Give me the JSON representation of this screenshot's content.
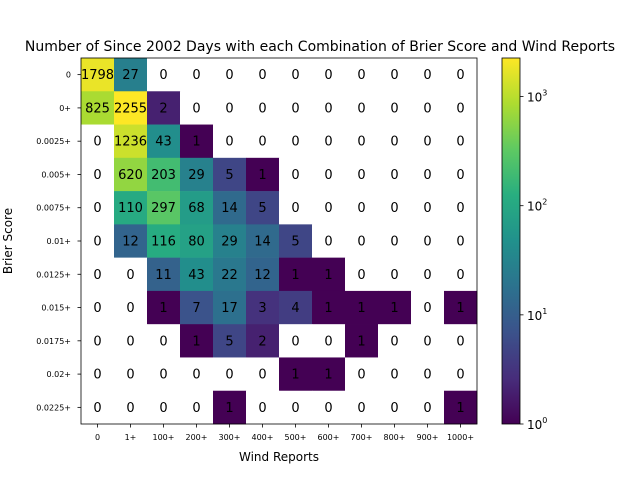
{
  "chart_data": {
    "type": "heatmap",
    "title": "Number of Since 2002 Days with each Combination of Brier Score and Wind Reports",
    "xlabel": "Wind Reports",
    "ylabel": "Brier Score",
    "x_categories": [
      "0",
      "1+",
      "100+",
      "200+",
      "300+",
      "400+",
      "500+",
      "600+",
      "700+",
      "800+",
      "900+",
      "1000+"
    ],
    "y_categories": [
      "0",
      "0+",
      "0.0025+",
      "0.005+",
      "0.0075+",
      "0.01+",
      "0.0125+",
      "0.015+",
      "0.0175+",
      "0.02+",
      "0.0225+"
    ],
    "values": [
      [
        1798,
        27,
        0,
        0,
        0,
        0,
        0,
        0,
        0,
        0,
        0,
        0
      ],
      [
        825,
        2255,
        2,
        0,
        0,
        0,
        0,
        0,
        0,
        0,
        0,
        0
      ],
      [
        0,
        1236,
        43,
        1,
        0,
        0,
        0,
        0,
        0,
        0,
        0,
        0
      ],
      [
        0,
        620,
        203,
        29,
        5,
        1,
        0,
        0,
        0,
        0,
        0,
        0
      ],
      [
        0,
        110,
        297,
        68,
        14,
        5,
        0,
        0,
        0,
        0,
        0,
        0
      ],
      [
        0,
        12,
        116,
        80,
        29,
        14,
        5,
        0,
        0,
        0,
        0,
        0
      ],
      [
        0,
        0,
        11,
        43,
        22,
        12,
        1,
        1,
        0,
        0,
        0,
        0
      ],
      [
        0,
        0,
        1,
        7,
        17,
        3,
        4,
        1,
        1,
        1,
        0,
        1
      ],
      [
        0,
        0,
        0,
        1,
        5,
        2,
        0,
        0,
        1,
        0,
        0,
        0
      ],
      [
        0,
        0,
        0,
        0,
        0,
        0,
        1,
        1,
        0,
        0,
        0,
        0
      ],
      [
        0,
        0,
        0,
        0,
        1,
        0,
        0,
        0,
        0,
        0,
        0,
        1
      ]
    ],
    "colormap": "viridis",
    "color_scale": "log",
    "color_range": [
      1,
      2255
    ],
    "colorbar_ticks": [
      {
        "base": "10",
        "exp": "0",
        "value": 1
      },
      {
        "base": "10",
        "exp": "1",
        "value": 10
      },
      {
        "base": "10",
        "exp": "2",
        "value": 100
      },
      {
        "base": "10",
        "exp": "3",
        "value": 1000
      }
    ],
    "zero_cells_color": "#ffffff"
  }
}
